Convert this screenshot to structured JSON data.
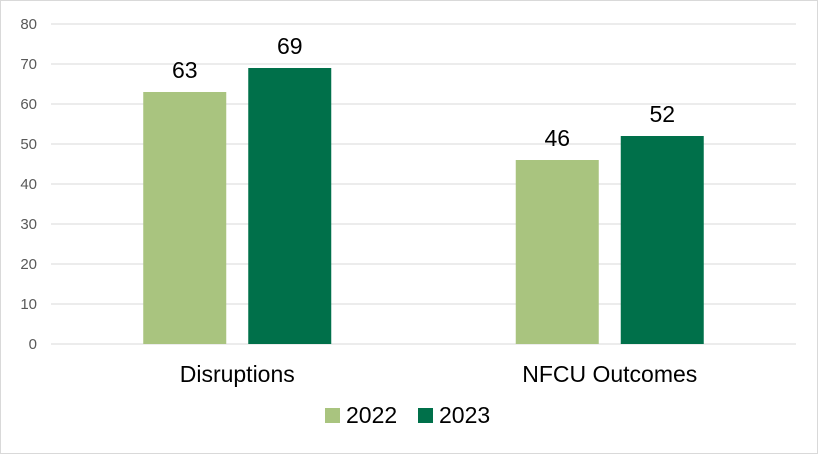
{
  "chart_data": {
    "type": "bar",
    "categories": [
      "Disruptions",
      "NFCU Outcomes"
    ],
    "series": [
      {
        "name": "2022",
        "values": [
          63,
          46
        ],
        "color": "#a9c47f"
      },
      {
        "name": "2023",
        "values": [
          69,
          52
        ],
        "color": "#00704a"
      }
    ],
    "ylim": [
      0,
      80
    ],
    "yticks": [
      0,
      10,
      20,
      30,
      40,
      50,
      60,
      70,
      80
    ],
    "grid": true,
    "legend_position": "bottom",
    "gridline_color": "#d9d9d9"
  }
}
